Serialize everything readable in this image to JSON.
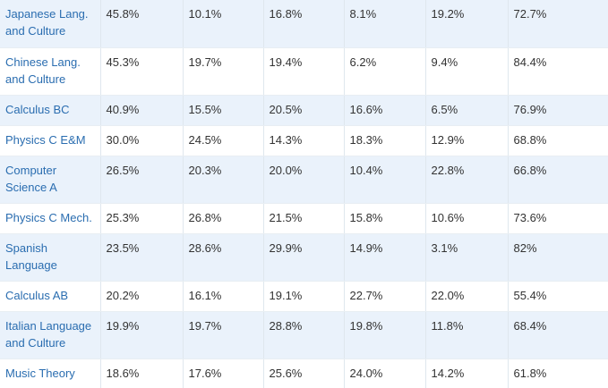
{
  "rows": [
    {
      "subject": "Japanese Lang. and Culture",
      "values": [
        "45.8%",
        "10.1%",
        "16.8%",
        "8.1%",
        "19.2%",
        "72.7%"
      ]
    },
    {
      "subject": "Chinese Lang. and Culture",
      "values": [
        "45.3%",
        "19.7%",
        "19.4%",
        "6.2%",
        "9.4%",
        "84.4%"
      ]
    },
    {
      "subject": "Calculus BC",
      "values": [
        "40.9%",
        "15.5%",
        "20.5%",
        "16.6%",
        "6.5%",
        "76.9%"
      ]
    },
    {
      "subject": "Physics C E&M",
      "values": [
        "30.0%",
        "24.5%",
        "14.3%",
        "18.3%",
        "12.9%",
        "68.8%"
      ]
    },
    {
      "subject": "Computer Science A",
      "values": [
        "26.5%",
        "20.3%",
        "20.0%",
        "10.4%",
        "22.8%",
        "66.8%"
      ]
    },
    {
      "subject": "Physics C Mech.",
      "values": [
        "25.3%",
        "26.8%",
        "21.5%",
        "15.8%",
        "10.6%",
        "73.6%"
      ]
    },
    {
      "subject": "Spanish Language",
      "values": [
        "23.5%",
        "28.6%",
        "29.9%",
        "14.9%",
        "3.1%",
        "82%"
      ]
    },
    {
      "subject": "Calculus AB",
      "values": [
        "20.2%",
        "16.1%",
        "19.1%",
        "22.7%",
        "22.0%",
        "55.4%"
      ]
    },
    {
      "subject": "Italian Language and Culture",
      "values": [
        "19.9%",
        "19.7%",
        "28.8%",
        "19.8%",
        "11.8%",
        "68.4%"
      ]
    },
    {
      "subject": "Music Theory",
      "values": [
        "18.6%",
        "17.6%",
        "25.6%",
        "24.0%",
        "14.2%",
        "61.8%"
      ]
    }
  ]
}
